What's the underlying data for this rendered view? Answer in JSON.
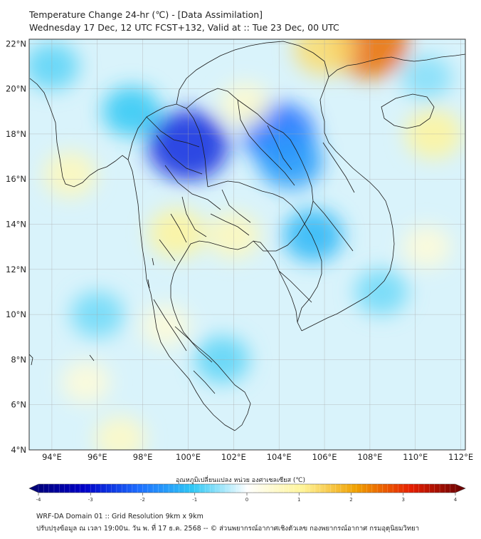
{
  "header": {
    "title": "Temperature Change 24-hr (℃) - [Data Assimilation]",
    "subtitle": "Wednesday 17 Dec, 12 UTC FCST+132, Valid at :: Tue 23 Dec, 00 UTC"
  },
  "map": {
    "lon_range": [
      93,
      112.2
    ],
    "lat_range": [
      4,
      22.2
    ],
    "lat_ticks": [
      "4°N",
      "6°N",
      "8°N",
      "10°N",
      "12°N",
      "14°N",
      "16°N",
      "18°N",
      "20°N",
      "22°N"
    ],
    "lat_values": [
      4,
      6,
      8,
      10,
      12,
      14,
      16,
      18,
      20,
      22
    ],
    "lon_ticks": [
      "94°E",
      "96°E",
      "98°E",
      "100°E",
      "102°E",
      "104°E",
      "106°E",
      "108°E",
      "110°E",
      "112°E"
    ],
    "lon_values": [
      94,
      96,
      98,
      100,
      102,
      104,
      106,
      108,
      110,
      112
    ],
    "anomalies": [
      {
        "lon": 100.0,
        "lat": 17.5,
        "value": -2.6
      },
      {
        "lon": 104.0,
        "lat": 18.0,
        "value": -2.0
      },
      {
        "lon": 104.5,
        "lat": 16.8,
        "value": -1.5
      },
      {
        "lon": 105.5,
        "lat": 13.5,
        "value": -1.2
      },
      {
        "lon": 97.5,
        "lat": 19.0,
        "value": -1.0
      },
      {
        "lon": 94.0,
        "lat": 21.0,
        "value": -0.8
      },
      {
        "lon": 101.5,
        "lat": 8.0,
        "value": -0.8
      },
      {
        "lon": 96.0,
        "lat": 10.0,
        "value": -0.7
      },
      {
        "lon": 108.5,
        "lat": 11.0,
        "value": -0.7
      },
      {
        "lon": 110.5,
        "lat": 20.5,
        "value": -0.6
      },
      {
        "lon": 99.5,
        "lat": 13.6,
        "value": 1.0
      },
      {
        "lon": 102.0,
        "lat": 13.5,
        "value": 0.7
      },
      {
        "lon": 94.8,
        "lat": 16.2,
        "value": 0.7
      },
      {
        "lon": 102.5,
        "lat": 19.3,
        "value": 0.5
      },
      {
        "lon": 108.0,
        "lat": 22.0,
        "value": 2.4
      },
      {
        "lon": 106.0,
        "lat": 21.8,
        "value": 1.3
      },
      {
        "lon": 110.8,
        "lat": 18.0,
        "value": 1.0
      },
      {
        "lon": 99.0,
        "lat": 9.5,
        "value": 0.4
      },
      {
        "lon": 97.0,
        "lat": 4.5,
        "value": 0.6
      },
      {
        "lon": 110.5,
        "lat": 13.0,
        "value": 0.4
      },
      {
        "lon": 95.5,
        "lat": 7.0,
        "value": 0.4
      }
    ]
  },
  "colorbar": {
    "label": "อุณหภูมิเปลี่ยนแปลง หน่วย องศาเซลเซียส (℃)",
    "ticks": [
      "-4",
      "-3",
      "-2",
      "-1",
      "0",
      "1",
      "2",
      "3",
      "4"
    ],
    "tick_values": [
      -4,
      -3,
      -2,
      -1,
      0,
      1,
      2,
      3,
      4
    ],
    "colors": [
      "#00006e",
      "#0000c8",
      "#1e6eff",
      "#2fc8f5",
      "#ffffff",
      "#fff59b",
      "#f0a000",
      "#e61e00",
      "#640000"
    ]
  },
  "footer": {
    "line1": "WRF-DA Domain 01 :: Grid Resolution 9km x 9km",
    "line2": "ปรับปรุงข้อมูล ณ เวลา 19:00น. วัน พ. ที่ 17 ธ.ค. 2568 -- © ส่วนพยากรณ์อากาศเชิงตัวเลข กองพยากรณ์อากาศ กรมอุตุนิยมวิทยา"
  }
}
